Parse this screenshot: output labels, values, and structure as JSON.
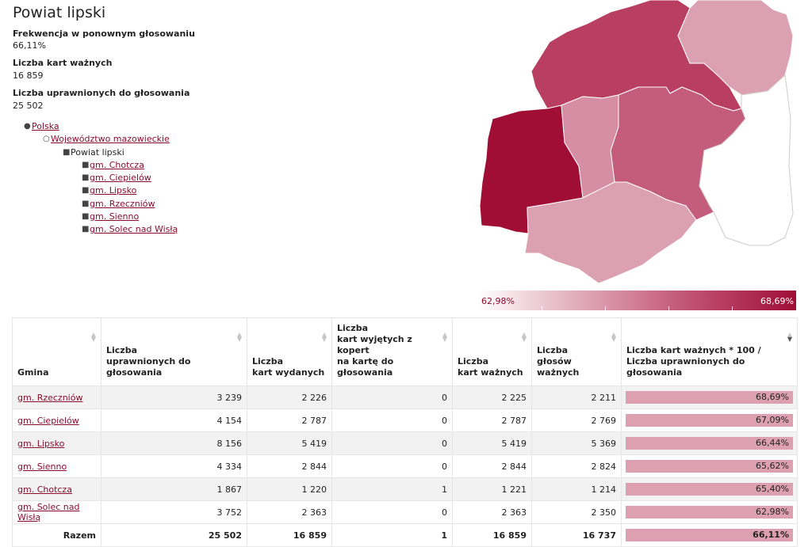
{
  "header": {
    "title": "Powiat lipski",
    "turnout_label": "Frekwencja w ponownym głosowaniu",
    "turnout_value": "66,11%",
    "valid_label": "Liczba kart ważnych",
    "valid_value": "16 859",
    "eligible_label": "Liczba uprawnionych do głosowania",
    "eligible_value": "25 502"
  },
  "breadcrumb": {
    "country": "Polska",
    "voivodeship": "Województwo mazowieckie",
    "county": "Powiat lipski",
    "communes": [
      "gm. Chotcza",
      "gm. Ciepielów",
      "gm. Lipsko",
      "gm. Rzeczniów",
      "gm. Sienno",
      "gm. Solec nad Wisłą"
    ]
  },
  "legend": {
    "min_label": "62,98%",
    "max_label": "68,69%",
    "min_color": "#ffffff",
    "max_color": "#a00d35"
  },
  "map_regions": [
    {
      "name": "gm. Rzeczniów",
      "turnout": 68.69,
      "color": "#a00d35"
    },
    {
      "name": "gm. Ciepielów",
      "turnout": 67.09,
      "color": "#b83e62"
    },
    {
      "name": "gm. Lipsko",
      "turnout": 66.44,
      "color": "#c45d7d"
    },
    {
      "name": "gm. Sienno",
      "turnout": 65.62,
      "color": "#d58ea4"
    },
    {
      "name": "gm. Chotcza",
      "turnout": 65.4,
      "color": "#dba0b1"
    },
    {
      "name": "gm. Solec nad Wisłą",
      "turnout": 62.98,
      "color": "#ffffff"
    }
  ],
  "table": {
    "columns": [
      "Gmina",
      "Liczba\nuprawnionych do głosowania",
      "Liczba\nkart wydanych",
      "Liczba\nkart wyjętych z kopert\nna kartę do głosowania",
      "Liczba\nkart ważnych",
      "Liczba\ngłosów ważnych",
      "Liczba kart ważnych * 100 /\nLiczba uprawnionych do głosowania"
    ],
    "rows": [
      {
        "name": "gm. Rzeczniów",
        "uprawnieni": "3 239",
        "wydane": "2 226",
        "wyjete": "0",
        "wazne": "2 225",
        "glosy": "2 211",
        "pct": "68,69%",
        "pct_value": 68.69
      },
      {
        "name": "gm. Ciepielów",
        "uprawnieni": "4 154",
        "wydane": "2 787",
        "wyjete": "0",
        "wazne": "2 787",
        "glosy": "2 769",
        "pct": "67,09%",
        "pct_value": 67.09
      },
      {
        "name": "gm. Lipsko",
        "uprawnieni": "8 156",
        "wydane": "5 419",
        "wyjete": "0",
        "wazne": "5 419",
        "glosy": "5 369",
        "pct": "66,44%",
        "pct_value": 66.44
      },
      {
        "name": "gm. Sienno",
        "uprawnieni": "4 334",
        "wydane": "2 844",
        "wyjete": "0",
        "wazne": "2 844",
        "glosy": "2 824",
        "pct": "65,62%",
        "pct_value": 65.62
      },
      {
        "name": "gm. Chotcza",
        "uprawnieni": "1 867",
        "wydane": "1 220",
        "wyjete": "1",
        "wazne": "1 221",
        "glosy": "1 214",
        "pct": "65,40%",
        "pct_value": 65.4
      },
      {
        "name": "gm. Solec nad Wisłą",
        "uprawnieni": "3 752",
        "wydane": "2 363",
        "wyjete": "0",
        "wazne": "2 363",
        "glosy": "2 350",
        "pct": "62,98%",
        "pct_value": 62.98
      }
    ],
    "total": {
      "name": "Razem",
      "uprawnieni": "25 502",
      "wydane": "16 859",
      "wyjete": "1",
      "wazne": "16 859",
      "glosy": "16 737",
      "pct": "66,11%",
      "pct_value": 66.11
    }
  }
}
